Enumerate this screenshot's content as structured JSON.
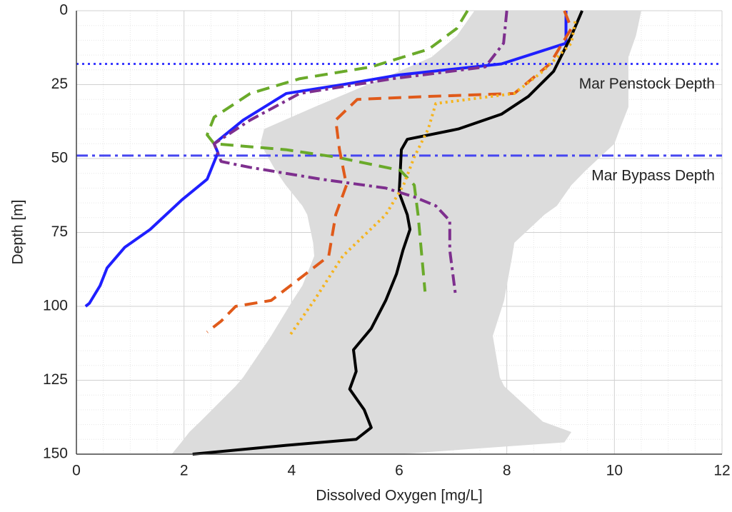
{
  "chart_data": {
    "type": "line",
    "xlabel": "Dissolved Oxygen [mg/L]",
    "ylabel": "Depth [m]",
    "xlim": [
      0,
      12
    ],
    "ylim": [
      0,
      150
    ],
    "y_inverted": true,
    "xticks": [
      0,
      2,
      4,
      6,
      8,
      10,
      12
    ],
    "yticks": [
      0,
      25,
      50,
      75,
      100,
      125,
      150
    ],
    "grid": true,
    "minor_grid": true,
    "band": {
      "color": "#dcdcdc",
      "y": [
        0,
        8.5,
        15.7,
        20.5,
        32.6,
        40,
        45,
        54,
        59,
        66,
        69,
        78.5,
        83,
        93,
        98,
        110,
        124,
        127,
        139,
        142.5,
        146,
        150
      ],
      "lower": [
        7.4,
        7.07,
        6.6,
        6.0,
        4.42,
        3.49,
        3.42,
        3.7,
        3.89,
        4.2,
        4.29,
        4.4,
        4.42,
        4.2,
        4.02,
        3.62,
        3.1,
        2.96,
        2.3,
        2.1,
        1.95,
        1.77
      ],
      "upper": [
        10.5,
        10.4,
        10.26,
        10.26,
        10.26,
        10.1,
        10.0,
        9.47,
        9.2,
        8.93,
        8.7,
        8.14,
        8.1,
        8.0,
        7.95,
        7.74,
        7.87,
        7.95,
        8.67,
        9.2,
        9.07,
        6.0
      ]
    },
    "series": [
      {
        "color": "#1f1fff",
        "style": "solid",
        "x": [
          9.1,
          9.1,
          9.1,
          7.9,
          6.0,
          4.95,
          3.9,
          3.1,
          2.56,
          2.63,
          2.43,
          1.96,
          1.37,
          0.9,
          0.57,
          0.44,
          0.24,
          0.17
        ],
        "y": [
          0,
          8,
          11,
          18,
          21.7,
          25,
          28,
          37,
          45,
          48,
          57,
          64,
          74,
          80,
          87,
          93,
          99,
          100
        ]
      },
      {
        "color": "#000000",
        "style": "solid",
        "x": [
          9.4,
          9.2,
          8.87,
          8.4,
          7.9,
          7.1,
          6.15,
          6.04,
          6.0,
          6.15,
          6.2,
          6.07,
          5.95,
          5.75,
          5.48,
          5.15,
          5.2,
          5.08,
          5.35,
          5.48,
          5.2,
          3.9,
          2.16
        ],
        "y": [
          0,
          8.5,
          20.5,
          29,
          35,
          40,
          43.5,
          47,
          61.6,
          69,
          74,
          81,
          89,
          98,
          107.5,
          114.7,
          122,
          128,
          135,
          141,
          145,
          147,
          150
        ]
      },
      {
        "color": "#6aaa2a",
        "style": "dashed",
        "x": [
          7.27,
          7.07,
          6.55,
          5.48,
          4.15,
          3.23,
          2.56,
          2.43,
          2.56,
          3.89,
          4.82,
          6.02,
          6.28,
          6.35,
          6.41,
          6.48
        ],
        "y": [
          0,
          6,
          13,
          19,
          23,
          28,
          36,
          42,
          45,
          47,
          49.5,
          54,
          59,
          69,
          81,
          95
        ]
      },
      {
        "color": "#7e2f8e",
        "style": "dashdot",
        "x": [
          8.0,
          7.94,
          7.6,
          5.88,
          4.15,
          3.23,
          2.56,
          2.69,
          3.23,
          4.55,
          5.75,
          6.28,
          6.68,
          6.94,
          6.94,
          7.05
        ],
        "y": [
          0,
          11,
          19,
          23,
          28,
          37,
          45,
          51,
          53,
          57,
          60,
          63,
          66,
          71,
          81,
          96.6
        ]
      },
      {
        "color": "#e05a1a",
        "style": "dashed",
        "x": [
          9.07,
          9.2,
          8.8,
          8.14,
          6.54,
          5.22,
          4.82,
          4.89,
          5.02,
          4.82,
          4.69,
          4.15,
          3.62,
          2.96,
          2.69,
          2.43
        ],
        "y": [
          0,
          6,
          18,
          28,
          29,
          30,
          37,
          47,
          59,
          69,
          83,
          90.6,
          98,
          100,
          105,
          108.7
        ]
      },
      {
        "color": "#f5b41e",
        "style": "dotted",
        "x": [
          9.27,
          9.2,
          8.67,
          8.14,
          6.68,
          6.54,
          6.28,
          6.08,
          5.75,
          4.95,
          4.42,
          3.96
        ],
        "y": [
          3.6,
          11,
          20.5,
          28,
          31.4,
          40,
          49.5,
          59,
          69,
          83,
          98,
          110
        ]
      }
    ],
    "hlines": [
      {
        "value": 18,
        "label": "Mar Penstock Depth",
        "color": "#3a3aff",
        "style": "dotted"
      },
      {
        "value": 49,
        "label": "Mar Bypass Depth",
        "color": "#4646f0",
        "style": "dashdot"
      }
    ]
  }
}
